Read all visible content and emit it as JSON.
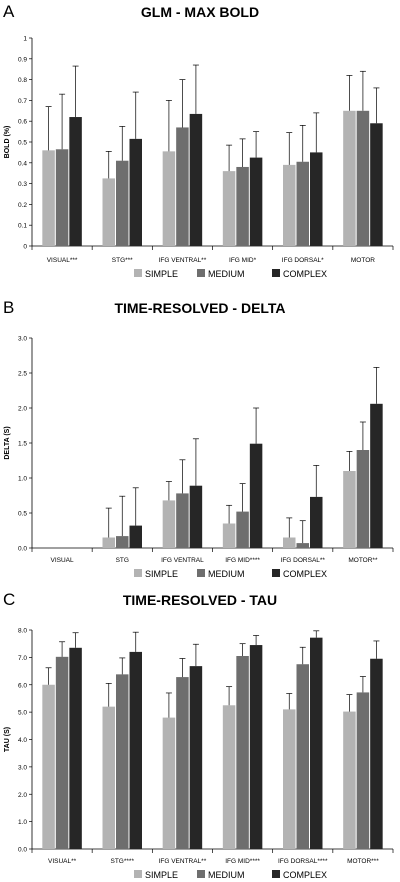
{
  "colors": {
    "simple": "#b3b3b3",
    "medium": "#6e6e6e",
    "complex": "#262626",
    "axis": "#000000"
  },
  "chart_data": [
    {
      "panel_letter": "A",
      "type": "bar",
      "title": "GLM - MAX BOLD",
      "ylabel": "BOLD (%)",
      "xlabel": "",
      "ylim": [
        0,
        1
      ],
      "yticks": [
        0,
        0.1,
        0.2,
        0.3,
        0.4,
        0.5,
        0.6,
        0.7,
        0.8,
        0.9,
        1
      ],
      "ytick_labels": [
        "0",
        "0.1",
        "0.2",
        "0.3",
        "0.4",
        "0.5",
        "0.6",
        "0.7",
        "0.8",
        "0.9",
        "1"
      ],
      "categories": [
        "VISUAL***",
        "STG***",
        "IFG VENTRAL**",
        "IFG MID*",
        "IFG DORSAL*",
        "MOTOR"
      ],
      "series": [
        {
          "name": "SIMPLE",
          "values": [
            0.46,
            0.325,
            0.455,
            0.36,
            0.39,
            0.65
          ],
          "errors": [
            0.21,
            0.13,
            0.245,
            0.125,
            0.155,
            0.17
          ]
        },
        {
          "name": "MEDIUM",
          "values": [
            0.465,
            0.41,
            0.57,
            0.38,
            0.405,
            0.65
          ],
          "errors": [
            0.265,
            0.165,
            0.23,
            0.135,
            0.175,
            0.19
          ]
        },
        {
          "name": "COMPLEX",
          "values": [
            0.62,
            0.515,
            0.635,
            0.425,
            0.45,
            0.59
          ],
          "errors": [
            0.245,
            0.225,
            0.235,
            0.125,
            0.19,
            0.17
          ]
        }
      ],
      "grid": false,
      "legend_position": "bottom"
    },
    {
      "panel_letter": "B",
      "type": "bar",
      "title": "TIME-RESOLVED - DELTA",
      "ylabel": "DELTA (S)",
      "xlabel": "",
      "ylim": [
        0,
        3
      ],
      "yticks": [
        0,
        0.5,
        1,
        1.5,
        2,
        2.5,
        3
      ],
      "ytick_labels": [
        "0.0",
        "0.5",
        "1.0",
        "1.5",
        "2.0",
        "2.5",
        "3.0"
      ],
      "categories": [
        "VISUAL",
        "STG",
        "IFG VENTRAL",
        "IFG MID****",
        "IFG DORSAL**",
        "MOTOR**"
      ],
      "series": [
        {
          "name": "SIMPLE",
          "values": [
            0,
            0.15,
            0.68,
            0.35,
            0.15,
            1.1
          ],
          "errors": [
            0,
            0.42,
            0.27,
            0.26,
            0.28,
            0.28
          ]
        },
        {
          "name": "MEDIUM",
          "values": [
            0,
            0.17,
            0.78,
            0.52,
            0.07,
            1.4
          ],
          "errors": [
            0,
            0.57,
            0.48,
            0.4,
            0.32,
            0.4
          ]
        },
        {
          "name": "COMPLEX",
          "values": [
            0,
            0.32,
            0.89,
            1.49,
            0.73,
            2.06
          ],
          "errors": [
            0,
            0.54,
            0.67,
            0.51,
            0.45,
            0.52
          ]
        }
      ],
      "grid": false,
      "legend_position": "bottom"
    },
    {
      "panel_letter": "C",
      "type": "bar",
      "title": "TIME-RESOLVED - TAU",
      "ylabel": "TAU (S)",
      "xlabel": "",
      "ylim": [
        0,
        8
      ],
      "yticks": [
        0,
        1,
        2,
        3,
        4,
        5,
        6,
        7,
        8
      ],
      "ytick_labels": [
        "0.0",
        "1.0",
        "2.0",
        "3.0",
        "4.0",
        "5.0",
        "6.0",
        "7.0",
        "8.0"
      ],
      "categories": [
        "VISUAL**",
        "STG****",
        "IFG VENTRAL**",
        "IFG MID****",
        "IFG DORSAL****",
        "MOTOR***"
      ],
      "series": [
        {
          "name": "SIMPLE",
          "values": [
            6.0,
            5.2,
            4.8,
            5.25,
            5.1,
            5.02
          ],
          "errors": [
            0.62,
            0.85,
            0.9,
            0.68,
            0.58,
            0.62
          ]
        },
        {
          "name": "MEDIUM",
          "values": [
            7.02,
            6.38,
            6.28,
            7.05,
            6.75,
            5.72
          ],
          "errors": [
            0.55,
            0.6,
            0.68,
            0.45,
            0.62,
            0.58
          ]
        },
        {
          "name": "COMPLEX",
          "values": [
            7.35,
            7.2,
            6.68,
            7.45,
            7.72,
            6.95
          ],
          "errors": [
            0.55,
            0.72,
            0.8,
            0.35,
            0.25,
            0.65
          ]
        }
      ],
      "grid": false,
      "legend_position": "bottom"
    }
  ]
}
